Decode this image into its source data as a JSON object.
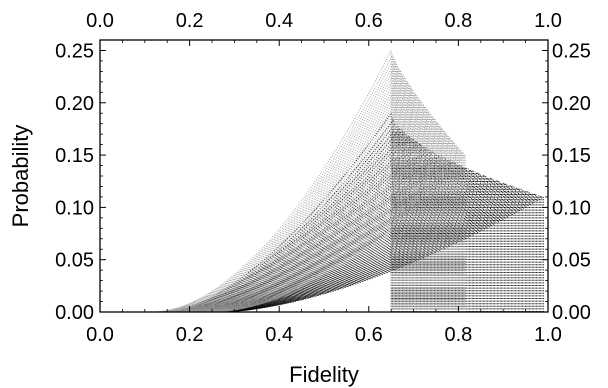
{
  "chart_data": {
    "type": "scatter",
    "title": "",
    "xlabel": "Fidelity",
    "ylabel": "Probability",
    "xlim": [
      0,
      1
    ],
    "ylim": [
      0,
      0.26
    ],
    "x_ticks": [
      "0.0",
      "0.2",
      "0.4",
      "0.6",
      "0.8",
      "1.0"
    ],
    "y_ticks": [
      "0.00",
      "0.05",
      "0.10",
      "0.15",
      "0.20",
      "0.25"
    ],
    "grid": false,
    "legend": "none",
    "frame_ticks_mirrored": true,
    "series": [
      {
        "color": "#000000",
        "description_shape": "dotted fan of curves",
        "x_start": 0.15,
        "x_onset": 0.65,
        "x_end": 0.99,
        "y_peak_at_onset": 0.19,
        "y_peak_at_end": 0.11
      },
      {
        "color": "#9e9e9e",
        "description_shape": "dotted fan of curves",
        "x_start": 0.12,
        "x_onset": 0.65,
        "x_end": 0.815,
        "y_peak_at_onset": 0.25,
        "y_peak_at_end": 0.15
      }
    ]
  }
}
